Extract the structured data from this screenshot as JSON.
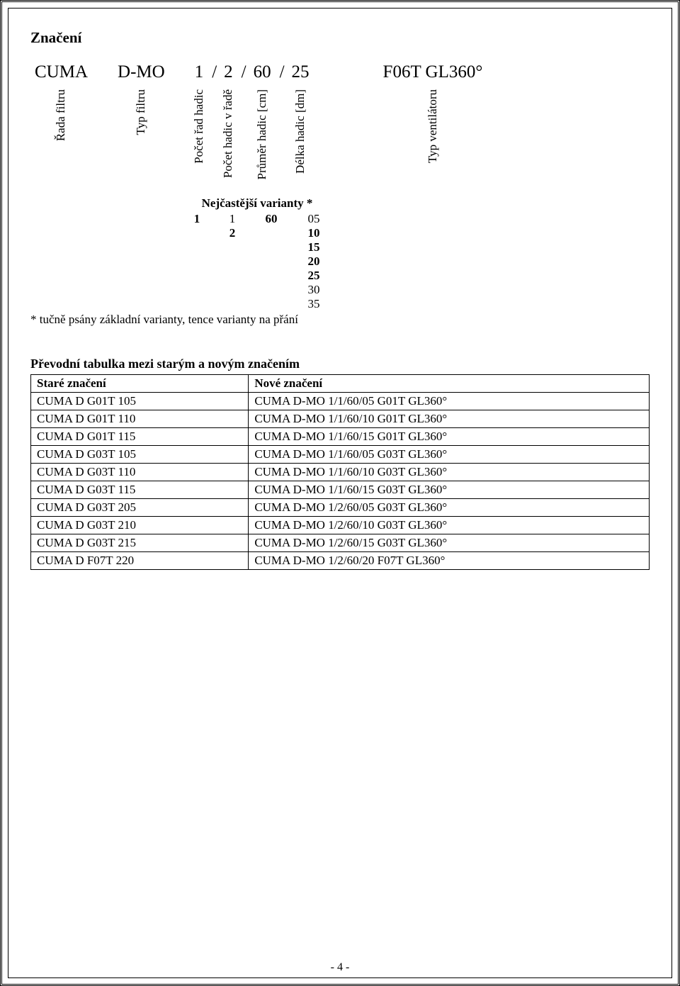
{
  "section_title": "Značení",
  "code": {
    "c1": "CUMA",
    "c2": "D-MO",
    "c3": "1",
    "c4": "2",
    "c5": "60",
    "c6": "25",
    "c7": "F06T GL360°",
    "l1": "Řada filtru",
    "l2": "Typ filtru",
    "l3": "Počet řad hadic",
    "l4": "Počet hadic v řadě",
    "l5": "Průměr hadic [cm]",
    "l6": "Délka hadic [dm]",
    "l7": "Typ ventilátoru",
    "slash": "/"
  },
  "variants": {
    "title": "Nejčastější varianty *",
    "rows": [
      {
        "a": "1",
        "b": "1",
        "c": "60",
        "d": "05",
        "bold_a": true,
        "bold_b": false,
        "bold_c": true,
        "bold_d": false
      },
      {
        "a": "",
        "b": "2",
        "c": "",
        "d": "10",
        "bold_b": true,
        "bold_d": true
      },
      {
        "a": "",
        "b": "",
        "c": "",
        "d": "15",
        "bold_d": true
      },
      {
        "a": "",
        "b": "",
        "c": "",
        "d": "20",
        "bold_d": true
      },
      {
        "a": "",
        "b": "",
        "c": "",
        "d": "25",
        "bold_d": true
      },
      {
        "a": "",
        "b": "",
        "c": "",
        "d": "30",
        "bold_d": false
      },
      {
        "a": "",
        "b": "",
        "c": "",
        "d": "35",
        "bold_d": false
      }
    ],
    "footnote": "* tučně psány základní varianty, tence varianty na přání"
  },
  "conv_table": {
    "title": "Převodní tabulka mezi starým a novým značením",
    "col1": "Staré značení",
    "col2": "Nové značení",
    "rows": [
      {
        "old": "CUMA D G01T 105",
        "new": "CUMA D-MO 1/1/60/05 G01T GL360°"
      },
      {
        "old": "CUMA D G01T 110",
        "new": "CUMA D-MO 1/1/60/10 G01T GL360°"
      },
      {
        "old": "CUMA D G01T 115",
        "new": "CUMA D-MO 1/1/60/15 G01T GL360°"
      },
      {
        "old": "CUMA D G03T 105",
        "new": "CUMA D-MO 1/1/60/05 G03T GL360°"
      },
      {
        "old": "CUMA D G03T 110",
        "new": "CUMA D-MO 1/1/60/10 G03T GL360°"
      },
      {
        "old": "CUMA D G03T 115",
        "new": "CUMA D-MO 1/1/60/15 G03T GL360°"
      },
      {
        "old": "CUMA D G03T 205",
        "new": "CUMA D-MO 1/2/60/05 G03T GL360°"
      },
      {
        "old": "CUMA D G03T 210",
        "new": "CUMA D-MO 1/2/60/10 G03T GL360°"
      },
      {
        "old": "CUMA D G03T 215",
        "new": "CUMA D-MO 1/2/60/15 G03T GL360°"
      },
      {
        "old": "CUMA D F07T 220",
        "new": "CUMA D-MO 1/2/60/20 F07T GL360°"
      }
    ]
  },
  "page_number": "- 4 -"
}
